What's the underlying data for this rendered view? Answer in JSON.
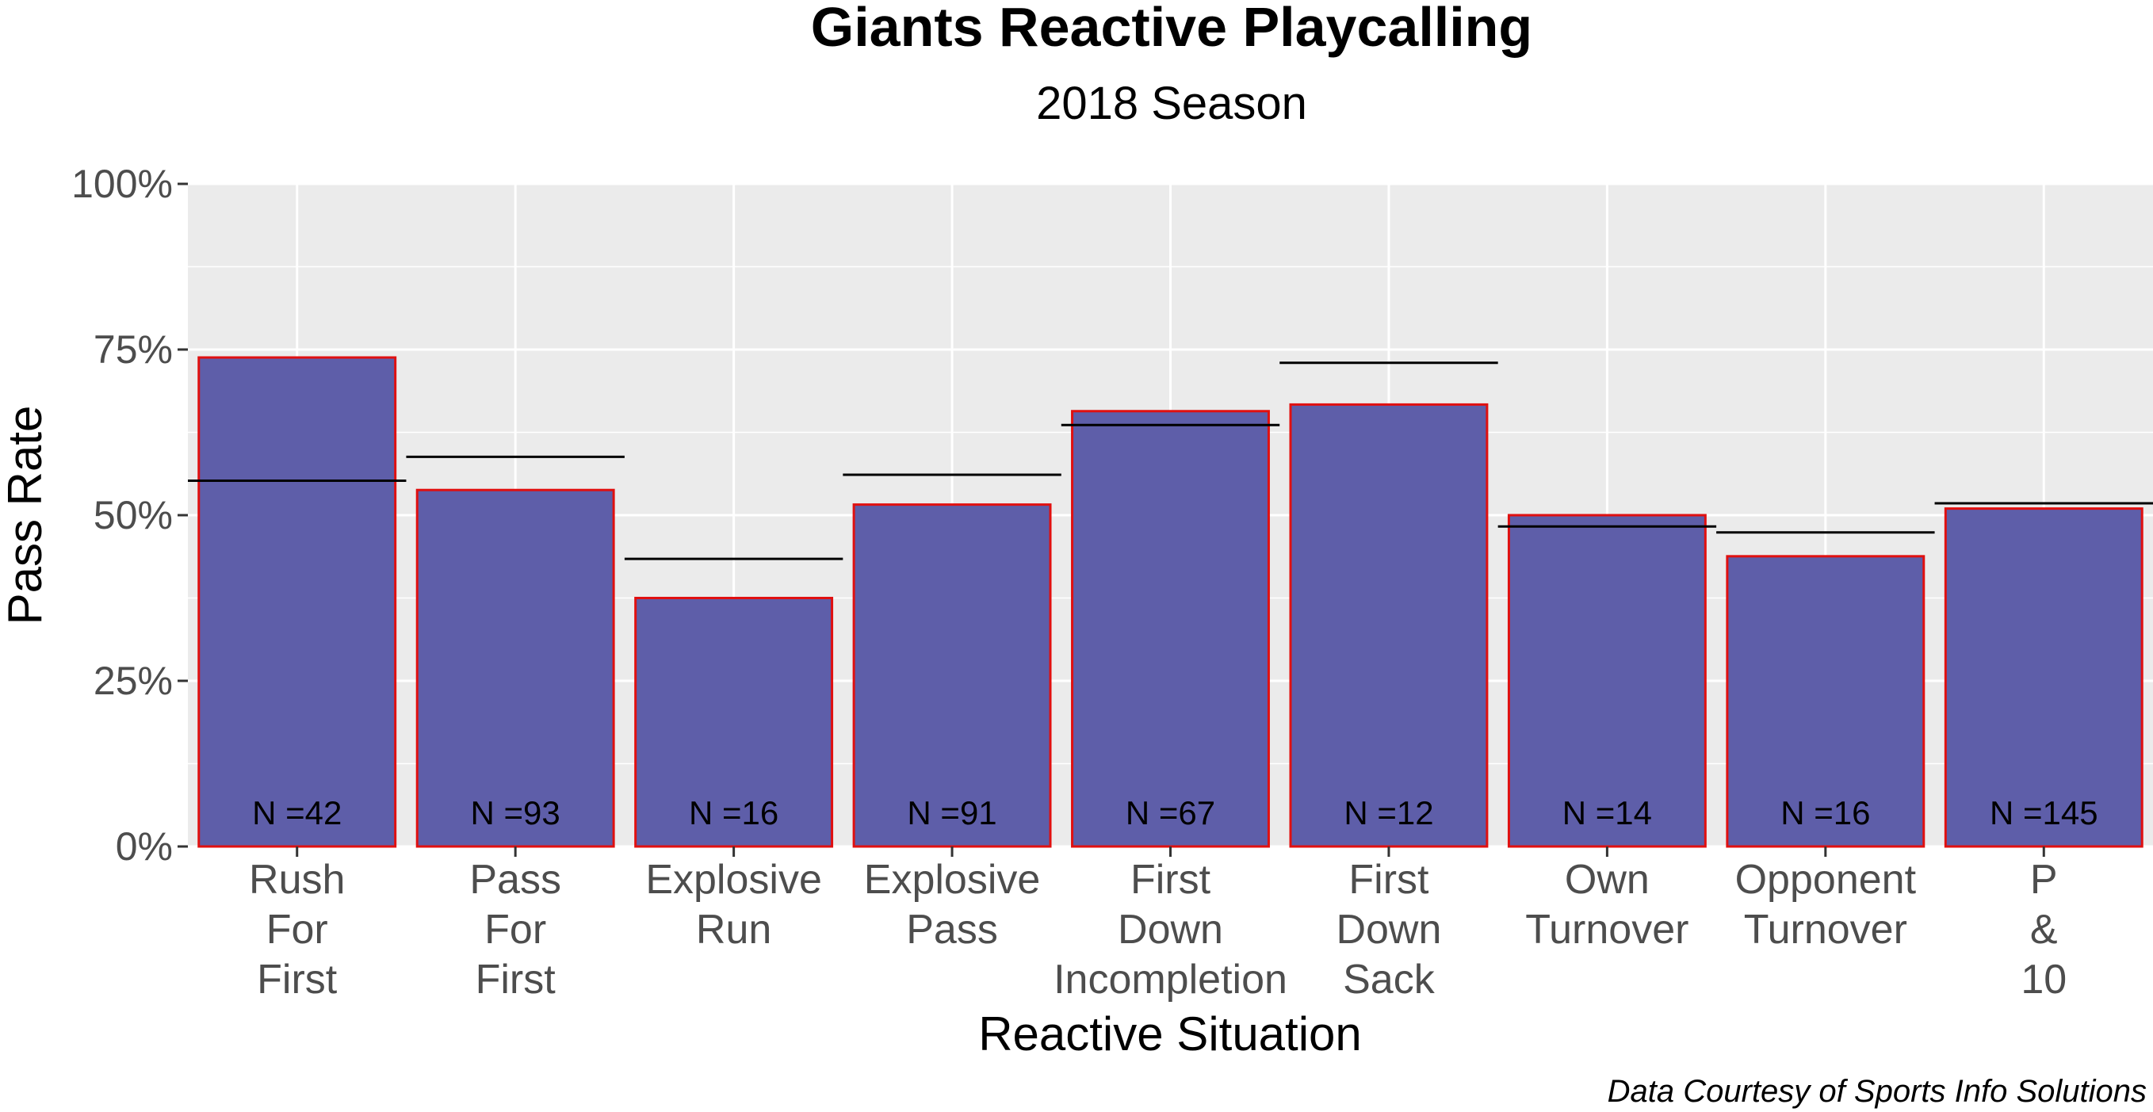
{
  "chart_data": {
    "type": "bar",
    "title": "Giants Reactive Playcalling",
    "subtitle": "2018 Season",
    "xlabel": "Reactive Situation",
    "ylabel": "Pass Rate",
    "caption": "Data Courtesy of Sports Info Solutions",
    "ylim": [
      0,
      1
    ],
    "yticks": [
      0,
      0.25,
      0.5,
      0.75,
      1.0
    ],
    "ytick_labels": [
      "0%",
      "25%",
      "50%",
      "75%",
      "100%"
    ],
    "grid": true,
    "categories": [
      [
        "Rush",
        "For",
        "First"
      ],
      [
        "Pass",
        "For",
        "First"
      ],
      [
        "Explosive",
        "Run"
      ],
      [
        "Explosive",
        "Pass"
      ],
      [
        "First",
        "Down",
        "Incompletion"
      ],
      [
        "First",
        "Down",
        "Sack"
      ],
      [
        "Own",
        "Turnover"
      ],
      [
        "Opponent",
        "Turnover"
      ],
      [
        "P",
        "&",
        "10"
      ]
    ],
    "values": [
      0.738,
      0.538,
      0.375,
      0.516,
      0.657,
      0.667,
      0.5,
      0.438,
      0.51
    ],
    "baseline_values": [
      0.552,
      0.588,
      0.434,
      0.561,
      0.636,
      0.73,
      0.483,
      0.474,
      0.518
    ],
    "n_labels": [
      "N =42",
      "N =93",
      "N =16",
      "N =91",
      "N =67",
      "N =12",
      "N =14",
      "N =16",
      "N =145"
    ],
    "colors": {
      "bar_fill": "#5e5ea9",
      "bar_outline": "#e01010",
      "baseline": "#000000",
      "panel_bg": "#ebebeb",
      "grid": "#ffffff",
      "axis_text": "#4d4d4d",
      "text": "#000000"
    }
  }
}
